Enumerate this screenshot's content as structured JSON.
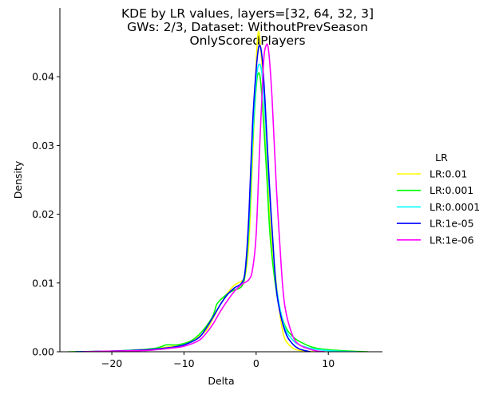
{
  "chart_data": {
    "type": "line",
    "title_lines": [
      "KDE by LR values, layers=[32, 64, 32, 3]",
      "GWs: 2/3, Dataset: WithoutPrevSeason",
      "OnlyScoredPlayers"
    ],
    "xlabel": "Delta",
    "ylabel": "Density",
    "xlim": [
      -27.2,
      17.5
    ],
    "ylim": [
      0,
      0.05
    ],
    "x_ticks": [
      -20,
      -10,
      0,
      10
    ],
    "x_tick_labels": [
      "−20",
      "−10",
      "0",
      "10"
    ],
    "y_ticks": [
      0.0,
      0.01,
      0.02,
      0.03,
      0.04
    ],
    "y_tick_labels": [
      "0.00",
      "0.01",
      "0.02",
      "0.03",
      "0.04"
    ],
    "grid": false,
    "legend": {
      "title": "LR",
      "placement": "right-outside"
    },
    "series": [
      {
        "name": "LR:0.01",
        "color": "#ffff00",
        "points": [
          [
            -25.5,
            0.0
          ],
          [
            -20,
            0.0001
          ],
          [
            -16,
            0.0003
          ],
          [
            -13,
            0.0006
          ],
          [
            -11,
            0.0009
          ],
          [
            -9,
            0.0016
          ],
          [
            -7,
            0.003
          ],
          [
            -6,
            0.0048
          ],
          [
            -5,
            0.0068
          ],
          [
            -4,
            0.0085
          ],
          [
            -3,
            0.0097
          ],
          [
            -2,
            0.0103
          ],
          [
            -1.5,
            0.0112
          ],
          [
            -1,
            0.016
          ],
          [
            -0.5,
            0.028
          ],
          [
            0,
            0.042
          ],
          [
            0.3,
            0.0465
          ],
          [
            0.6,
            0.0445
          ],
          [
            1,
            0.0385
          ],
          [
            1.5,
            0.028
          ],
          [
            2,
            0.018
          ],
          [
            3,
            0.008
          ],
          [
            3.5,
            0.004
          ],
          [
            4,
            0.0018
          ],
          [
            5,
            0.0006
          ],
          [
            6,
            0.0002
          ],
          [
            8,
            0.0
          ]
        ]
      },
      {
        "name": "LR:0.001",
        "color": "#00ff00",
        "points": [
          [
            -26,
            0.0
          ],
          [
            -20,
            0.0001
          ],
          [
            -16,
            0.0003
          ],
          [
            -14,
            0.0005
          ],
          [
            -13,
            0.0008
          ],
          [
            -12.5,
            0.001
          ],
          [
            -12,
            0.001
          ],
          [
            -11,
            0.001
          ],
          [
            -10,
            0.0012
          ],
          [
            -9,
            0.0016
          ],
          [
            -8,
            0.0024
          ],
          [
            -7,
            0.0036
          ],
          [
            -6,
            0.0052
          ],
          [
            -5.5,
            0.0068
          ],
          [
            -5,
            0.0075
          ],
          [
            -4,
            0.0084
          ],
          [
            -3,
            0.009
          ],
          [
            -2,
            0.0095
          ],
          [
            -1.5,
            0.0115
          ],
          [
            -1,
            0.018
          ],
          [
            -0.5,
            0.03
          ],
          [
            0,
            0.0385
          ],
          [
            0.3,
            0.0405
          ],
          [
            0.6,
            0.0395
          ],
          [
            1,
            0.034
          ],
          [
            1.5,
            0.025
          ],
          [
            2,
            0.016
          ],
          [
            3,
            0.0075
          ],
          [
            4,
            0.0038
          ],
          [
            5,
            0.0023
          ],
          [
            6,
            0.0015
          ],
          [
            8,
            0.0006
          ],
          [
            10,
            0.0003
          ],
          [
            13,
            0.0001
          ],
          [
            15.5,
            0.0
          ]
        ]
      },
      {
        "name": "LR:0.0001",
        "color": "#00ffff",
        "points": [
          [
            -25,
            0.0
          ],
          [
            -20,
            0.0001
          ],
          [
            -15,
            0.0003
          ],
          [
            -12,
            0.0006
          ],
          [
            -10,
            0.001
          ],
          [
            -8,
            0.002
          ],
          [
            -7,
            0.0033
          ],
          [
            -6,
            0.005
          ],
          [
            -5,
            0.0068
          ],
          [
            -4,
            0.0083
          ],
          [
            -3,
            0.0093
          ],
          [
            -2,
            0.01
          ],
          [
            -1.5,
            0.012
          ],
          [
            -1,
            0.019
          ],
          [
            -0.5,
            0.031
          ],
          [
            0,
            0.0395
          ],
          [
            0.4,
            0.0418
          ],
          [
            0.8,
            0.0405
          ],
          [
            1.2,
            0.035
          ],
          [
            1.8,
            0.024
          ],
          [
            2.5,
            0.013
          ],
          [
            3,
            0.008
          ],
          [
            4,
            0.0035
          ],
          [
            5,
            0.0018
          ],
          [
            6,
            0.001
          ],
          [
            8,
            0.0004
          ],
          [
            11,
            0.0001
          ],
          [
            14,
            0.0
          ]
        ]
      },
      {
        "name": "LR:1e-05",
        "color": "#0000ff",
        "points": [
          [
            -25,
            0.0
          ],
          [
            -20,
            0.0001
          ],
          [
            -15,
            0.0003
          ],
          [
            -12,
            0.0006
          ],
          [
            -10,
            0.001
          ],
          [
            -8,
            0.002
          ],
          [
            -7,
            0.0033
          ],
          [
            -6,
            0.005
          ],
          [
            -5,
            0.0068
          ],
          [
            -4,
            0.0083
          ],
          [
            -3,
            0.0093
          ],
          [
            -2,
            0.01
          ],
          [
            -1.5,
            0.012
          ],
          [
            -1,
            0.02
          ],
          [
            -0.5,
            0.033
          ],
          [
            0,
            0.041
          ],
          [
            0.4,
            0.0445
          ],
          [
            0.8,
            0.043
          ],
          [
            1.2,
            0.037
          ],
          [
            1.8,
            0.025
          ],
          [
            2.5,
            0.013
          ],
          [
            3,
            0.0075
          ],
          [
            4,
            0.003
          ],
          [
            5,
            0.0012
          ],
          [
            6,
            0.0004
          ],
          [
            7.5,
            0.0
          ]
        ]
      },
      {
        "name": "LR:1e-06",
        "color": "#ff00ff",
        "points": [
          [
            -24,
            0.0
          ],
          [
            -20,
            0.0001
          ],
          [
            -15,
            0.0002
          ],
          [
            -12,
            0.0005
          ],
          [
            -10,
            0.0008
          ],
          [
            -8,
            0.0016
          ],
          [
            -7,
            0.0026
          ],
          [
            -6,
            0.004
          ],
          [
            -5,
            0.0058
          ],
          [
            -4,
            0.0074
          ],
          [
            -3,
            0.0088
          ],
          [
            -2,
            0.0098
          ],
          [
            -1,
            0.0105
          ],
          [
            -0.5,
            0.012
          ],
          [
            0,
            0.017
          ],
          [
            0.5,
            0.03
          ],
          [
            1,
            0.0415
          ],
          [
            1.3,
            0.0443
          ],
          [
            1.7,
            0.044
          ],
          [
            2.2,
            0.037
          ],
          [
            2.8,
            0.024
          ],
          [
            3.5,
            0.012
          ],
          [
            4,
            0.0065
          ],
          [
            5,
            0.0025
          ],
          [
            6,
            0.001
          ],
          [
            8,
            0.0002
          ],
          [
            9.5,
            0.0
          ]
        ]
      }
    ]
  }
}
